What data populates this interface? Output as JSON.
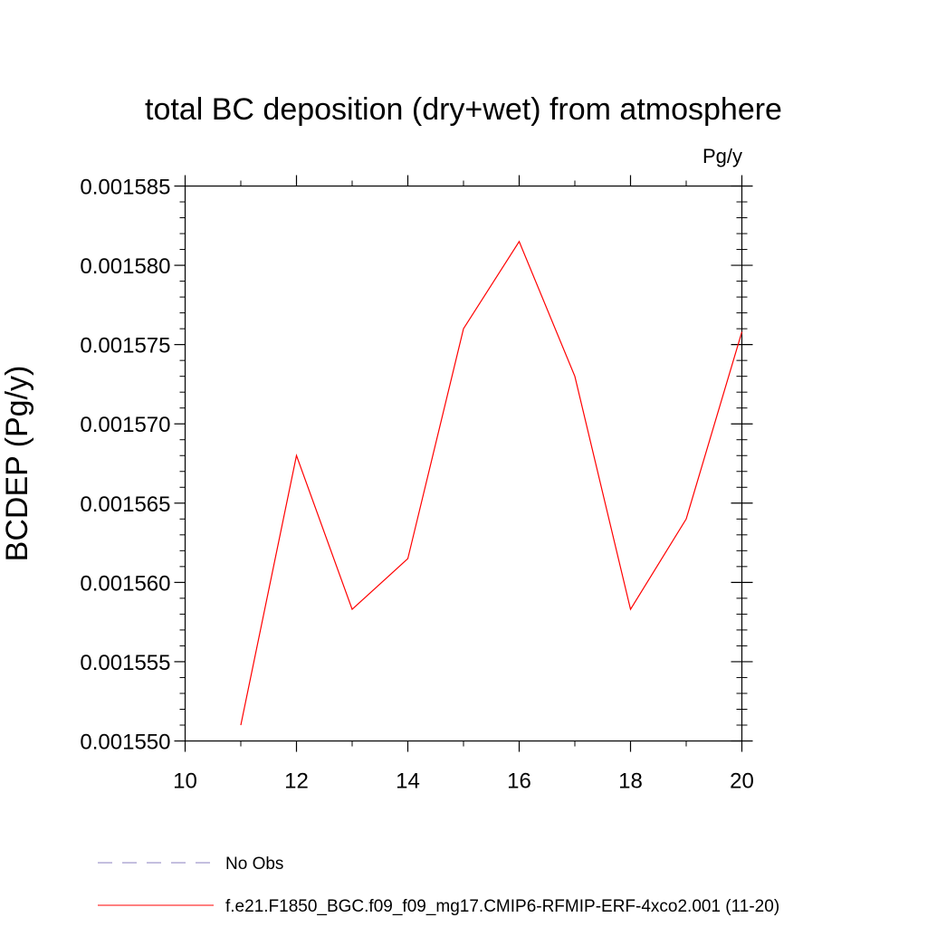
{
  "chart_data": {
    "type": "line",
    "title": "total BC deposition (dry+wet) from atmosphere",
    "units_label": "Pg/y",
    "xlabel": "",
    "ylabel": "BCDEP  (Pg/y)",
    "xlim": [
      10,
      20
    ],
    "ylim": [
      0.00155,
      0.001585
    ],
    "x_ticks": [
      10,
      12,
      14,
      16,
      18,
      20
    ],
    "x_tick_labels": [
      "10",
      "12",
      "14",
      "16",
      "18",
      "20"
    ],
    "y_ticks": [
      0.00155,
      0.001555,
      0.00156,
      0.001565,
      0.00157,
      0.001575,
      0.00158,
      0.001585
    ],
    "y_tick_labels": [
      "0.001550",
      "0.001555",
      "0.001560",
      "0.001565",
      "0.001570",
      "0.001575",
      "0.001580",
      "0.001585"
    ],
    "grid": false,
    "legend_position": "bottom",
    "series": [
      {
        "name": "f.e21.F1850_BGC.f09_f09_mg17.CMIP6-RFMIP-ERF-4xco2.001 (11-20)",
        "color": "#ff0000",
        "x": [
          11,
          12,
          13,
          14,
          15,
          16,
          17,
          18,
          19,
          20
        ],
        "y": [
          0.001551,
          0.001568,
          0.0015583,
          0.0015615,
          0.001576,
          0.0015815,
          0.001573,
          0.0015583,
          0.001564,
          0.0015758
        ]
      }
    ],
    "legend": [
      {
        "label": "No Obs",
        "color": "#8a7fbf",
        "dashed": true
      },
      {
        "label": "f.e21.F1850_BGC.f09_f09_mg17.CMIP6-RFMIP-ERF-4xco2.001 (11-20)",
        "color": "#ff0000",
        "dashed": false
      }
    ]
  }
}
